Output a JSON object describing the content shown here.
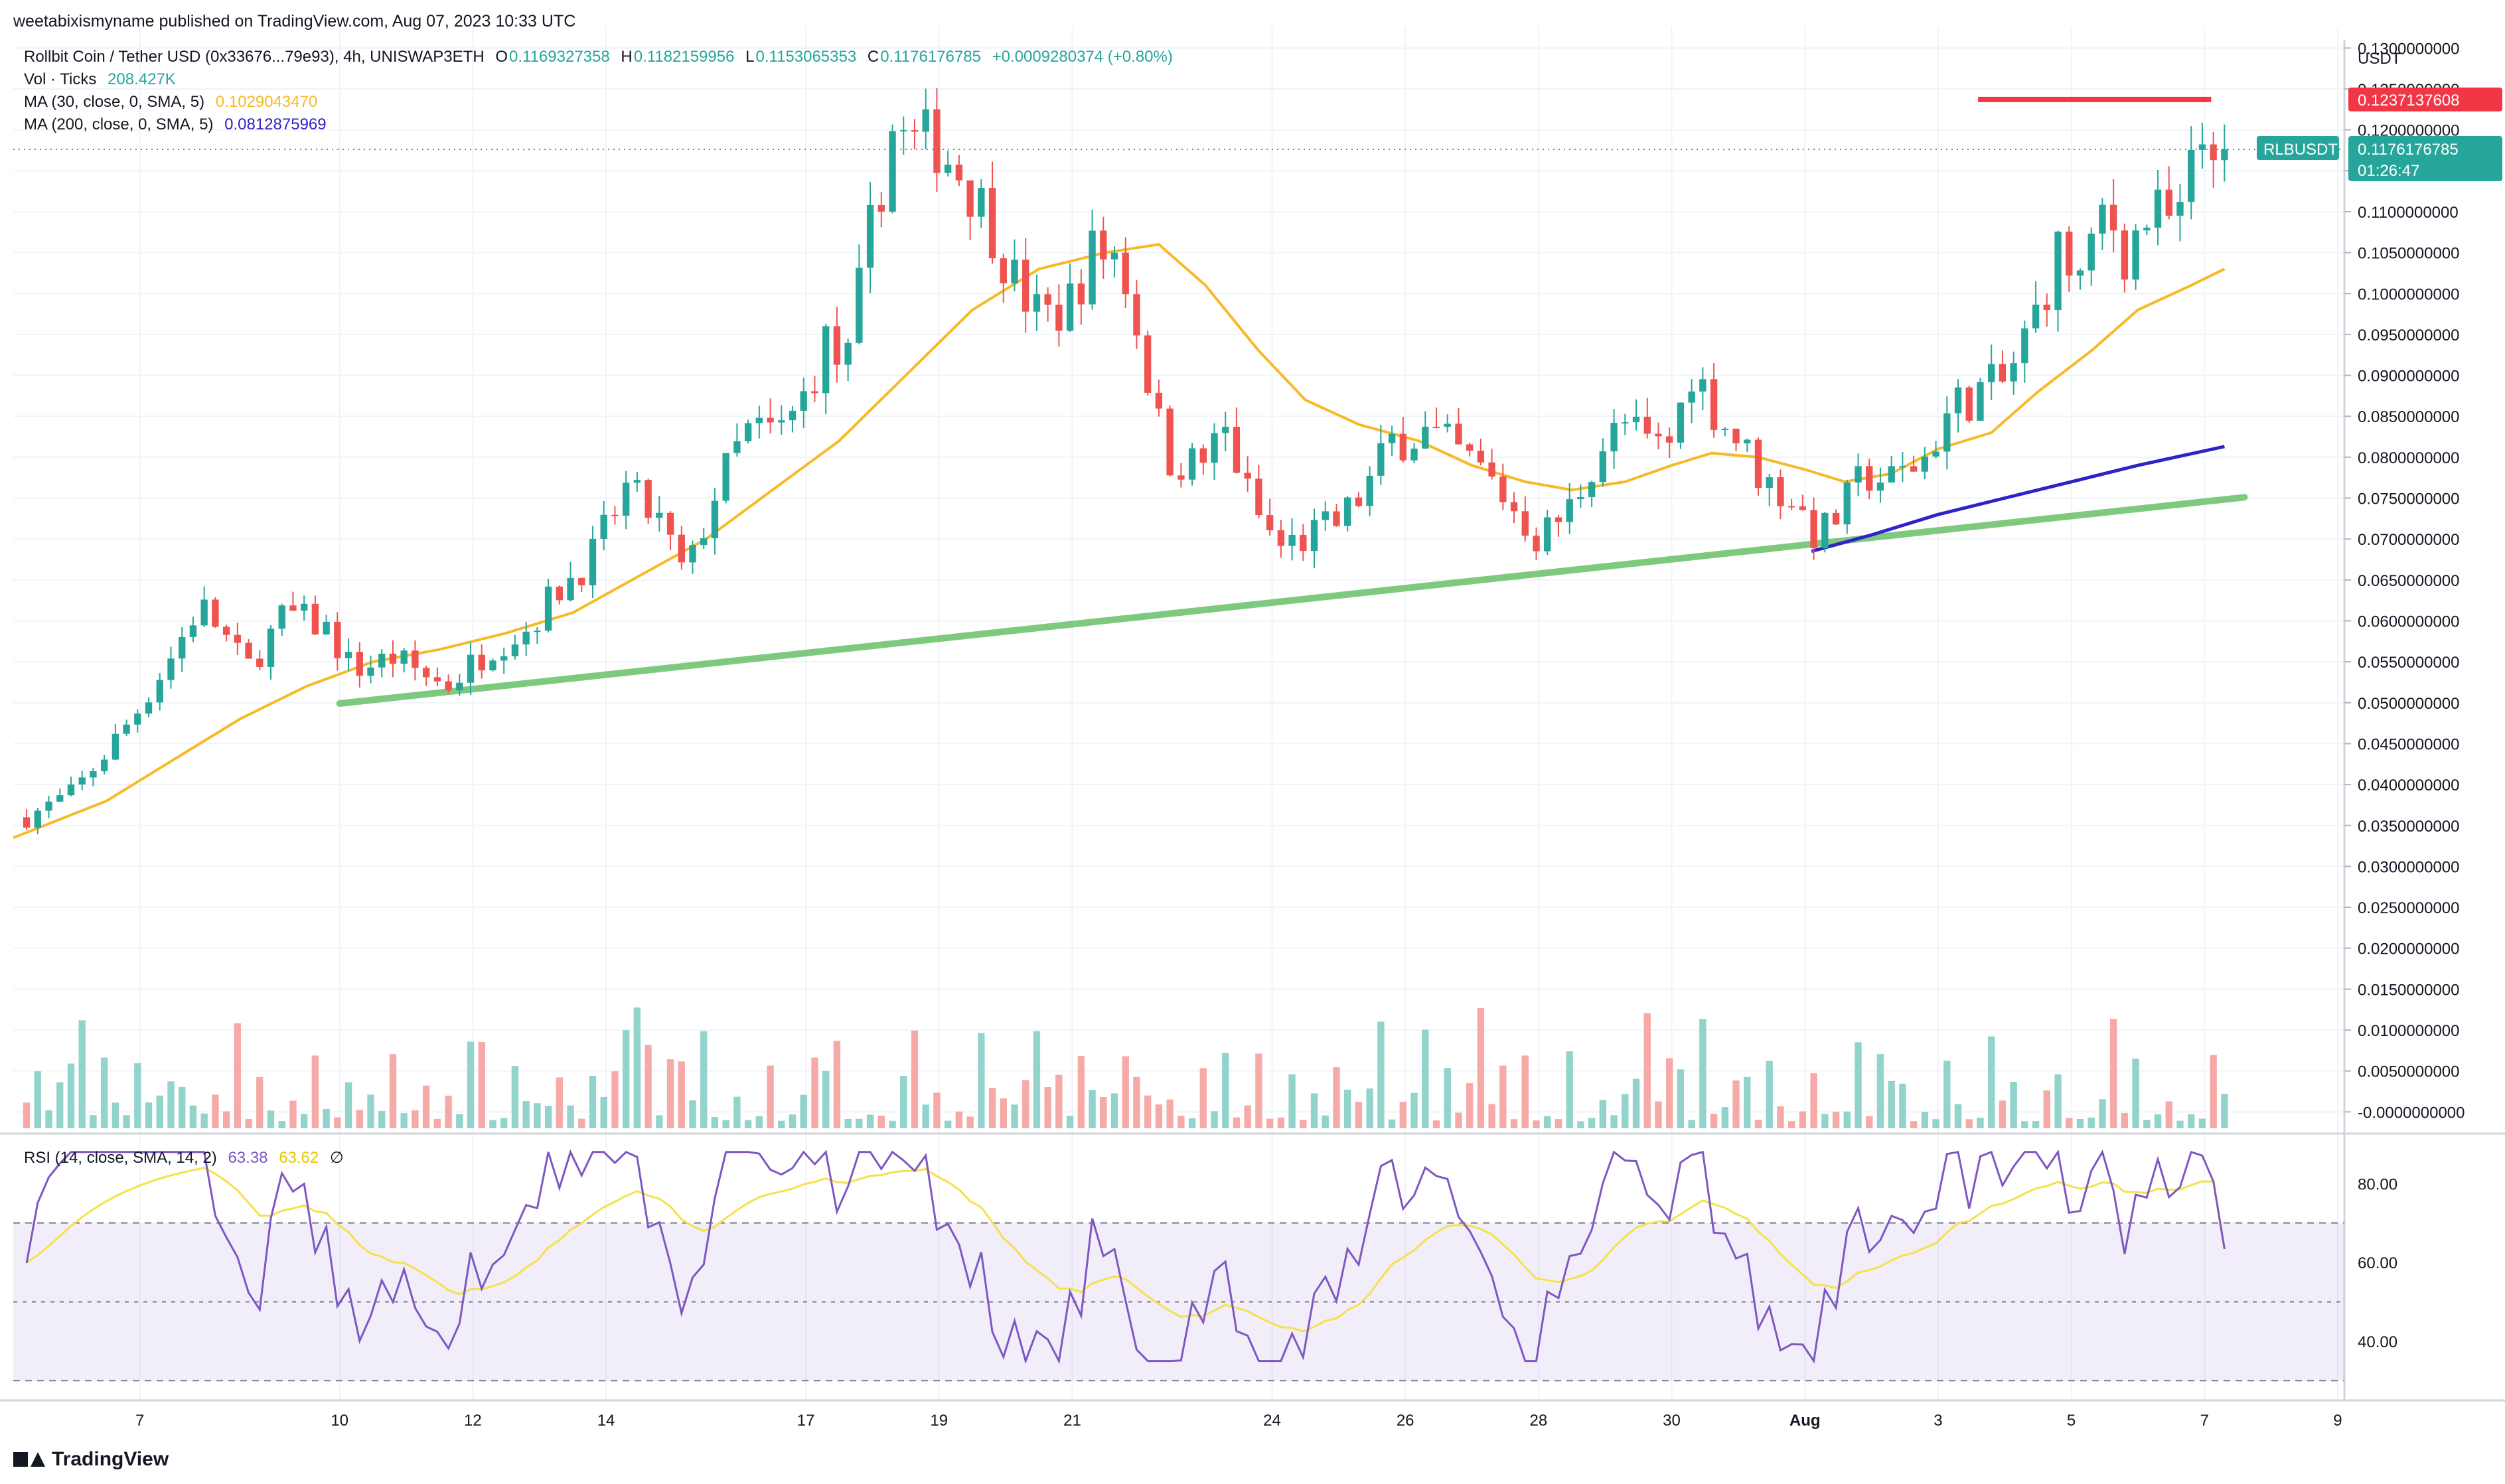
{
  "header": {
    "published": "weetabixismyname published on TradingView.com, Aug 07, 2023 10:33 UTC"
  },
  "legend": {
    "symbol": "Rollbit Coin / Tether USD (0x33676...79e93), 4h, UNISWAP3ETH",
    "o_label": "O",
    "o_value": "0.1169327358",
    "h_label": "H",
    "h_value": "0.1182159956",
    "l_label": "L",
    "l_value": "0.1153065353",
    "c_label": "C",
    "c_value": "0.1176176785",
    "change": "+0.0009280374 (+0.80%)",
    "vol_label": "Vol · Ticks",
    "vol_value": "208.427K",
    "ma30_label": "MA (30, close, 0, SMA, 5)",
    "ma30_value": "0.1029043470",
    "ma200_label": "MA (200, close, 0, SMA, 5)",
    "ma200_value": "0.0812875969",
    "rsi_label": "RSI (14, close, SMA, 14, 2)",
    "rsi_value": "63.38",
    "rsi_sma_value": "63.62",
    "rsi_extra": "∅"
  },
  "price_axis": {
    "currency": "USDT",
    "ticks": [
      "0.1300000000",
      "0.1250000000",
      "0.1200000000",
      "0.1150000000",
      "0.1100000000",
      "0.1050000000",
      "0.1000000000",
      "0.0950000000",
      "0.0900000000",
      "0.0850000000",
      "0.0800000000",
      "0.0750000000",
      "0.0700000000",
      "0.0650000000",
      "0.0600000000",
      "0.0550000000",
      "0.0500000000",
      "0.0450000000",
      "0.0400000000",
      "0.0350000000",
      "0.0300000000",
      "0.0250000000",
      "0.0200000000",
      "0.0150000000",
      "0.0100000000",
      "0.0050000000",
      "-0.0000000000"
    ],
    "resistance_label": "0.1237137608",
    "symbol_tag": "RLBUSDT",
    "last_price_label": "0.1176176785",
    "countdown": "01:26:47"
  },
  "rsi_axis": {
    "ticks": [
      "80.00",
      "60.00",
      "40.00"
    ]
  },
  "time_axis": {
    "ticks": [
      "7",
      "10",
      "12",
      "14",
      "17",
      "19",
      "21",
      "24",
      "26",
      "28",
      "30",
      "Aug",
      "3",
      "5",
      "7",
      "9"
    ]
  },
  "colors": {
    "up": "#26a69a",
    "down": "#ef5350",
    "ma30": "#f7b924",
    "ma200": "#2f22c9",
    "support": "#7fc97f",
    "resistance": "#f23645",
    "rsi": "#7e57c2",
    "rsi_sma": "#f5e14a",
    "vol_up": "#92d3cc",
    "vol_down": "#f5aaa8"
  },
  "chart_data": {
    "type": "candlestick",
    "timeframe": "4h",
    "x_tick_days": [
      7,
      10,
      12,
      14,
      17,
      19,
      21,
      24,
      26,
      28,
      30,
      32,
      34,
      36,
      38,
      40
    ],
    "x_tick_labels": [
      "7",
      "10",
      "12",
      "14",
      "17",
      "19",
      "21",
      "24",
      "26",
      "28",
      "30",
      "Aug",
      "3",
      "5",
      "7",
      "9"
    ],
    "day_range": [
      5.1,
      40.1
    ],
    "price_range": [
      -0.002,
      0.131
    ],
    "last_price": 0.1176176785,
    "resistance": {
      "price": 0.1237137608,
      "from_day": 34.6,
      "to_day": 38.1
    },
    "support_line": {
      "from": [
        10.0,
        0.0499
      ],
      "to": [
        38.6,
        0.0751
      ]
    },
    "price_waypoints": [
      [
        5.3,
        0.036
      ],
      [
        6.0,
        0.039
      ],
      [
        6.5,
        0.044
      ],
      [
        7.0,
        0.0495
      ],
      [
        7.5,
        0.056
      ],
      [
        7.9,
        0.062
      ],
      [
        8.2,
        0.059
      ],
      [
        8.6,
        0.054
      ],
      [
        9.2,
        0.061
      ],
      [
        9.8,
        0.059
      ],
      [
        10.2,
        0.054
      ],
      [
        10.8,
        0.0555
      ],
      [
        11.6,
        0.052
      ],
      [
        12.3,
        0.057
      ],
      [
        12.8,
        0.059
      ],
      [
        13.3,
        0.064
      ],
      [
        13.8,
        0.068
      ],
      [
        14.3,
        0.076
      ],
      [
        14.8,
        0.072
      ],
      [
        15.2,
        0.065
      ],
      [
        15.6,
        0.075
      ],
      [
        16.1,
        0.083
      ],
      [
        16.6,
        0.083
      ],
      [
        16.9,
        0.086
      ],
      [
        17.3,
        0.094
      ],
      [
        17.6,
        0.09
      ],
      [
        17.9,
        0.105
      ],
      [
        18.3,
        0.12
      ],
      [
        18.6,
        0.118
      ],
      [
        18.9,
        0.119
      ],
      [
        19.3,
        0.115
      ],
      [
        19.7,
        0.11
      ],
      [
        20.1,
        0.102
      ],
      [
        20.5,
        0.097
      ],
      [
        20.9,
        0.098
      ],
      [
        21.3,
        0.105
      ],
      [
        21.7,
        0.105
      ],
      [
        22.0,
        0.095
      ],
      [
        22.4,
        0.08
      ],
      [
        22.9,
        0.079
      ],
      [
        23.3,
        0.083
      ],
      [
        23.7,
        0.074
      ],
      [
        24.1,
        0.069
      ],
      [
        24.5,
        0.07
      ],
      [
        25.0,
        0.072
      ],
      [
        25.4,
        0.076
      ],
      [
        25.8,
        0.082
      ],
      [
        26.3,
        0.083
      ],
      [
        26.7,
        0.081
      ],
      [
        27.2,
        0.078
      ],
      [
        27.6,
        0.074
      ],
      [
        28.0,
        0.07
      ],
      [
        28.5,
        0.074
      ],
      [
        28.9,
        0.081
      ],
      [
        29.3,
        0.084
      ],
      [
        29.7,
        0.081
      ],
      [
        30.0,
        0.082
      ],
      [
        30.3,
        0.091
      ],
      [
        30.7,
        0.085
      ],
      [
        31.0,
        0.082
      ],
      [
        31.4,
        0.077
      ],
      [
        31.8,
        0.075
      ],
      [
        32.2,
        0.07
      ],
      [
        32.6,
        0.074
      ],
      [
        32.9,
        0.078
      ],
      [
        33.3,
        0.077
      ],
      [
        33.8,
        0.08
      ],
      [
        34.2,
        0.086
      ],
      [
        34.6,
        0.088
      ],
      [
        35.0,
        0.089
      ],
      [
        35.4,
        0.096
      ],
      [
        35.8,
        0.105
      ],
      [
        36.2,
        0.101
      ],
      [
        36.5,
        0.111
      ],
      [
        36.8,
        0.105
      ],
      [
        37.2,
        0.11
      ],
      [
        37.6,
        0.108
      ],
      [
        37.9,
        0.118
      ],
      [
        38.1,
        0.12
      ],
      [
        38.35,
        0.1176
      ]
    ],
    "ma30_waypoints": [
      [
        5.1,
        0.0335
      ],
      [
        6.5,
        0.038
      ],
      [
        7.5,
        0.043
      ],
      [
        8.5,
        0.048
      ],
      [
        9.5,
        0.052
      ],
      [
        10.5,
        0.055
      ],
      [
        11.5,
        0.0565
      ],
      [
        12.5,
        0.0585
      ],
      [
        13.5,
        0.061
      ],
      [
        14.5,
        0.0655
      ],
      [
        15.5,
        0.07
      ],
      [
        16.5,
        0.076
      ],
      [
        17.5,
        0.082
      ],
      [
        18.5,
        0.09
      ],
      [
        19.5,
        0.098
      ],
      [
        20.5,
        0.103
      ],
      [
        21.5,
        0.105
      ],
      [
        22.3,
        0.106
      ],
      [
        23.0,
        0.101
      ],
      [
        23.8,
        0.093
      ],
      [
        24.5,
        0.087
      ],
      [
        25.3,
        0.084
      ],
      [
        26.2,
        0.082
      ],
      [
        27.0,
        0.079
      ],
      [
        27.8,
        0.077
      ],
      [
        28.5,
        0.076
      ],
      [
        29.3,
        0.077
      ],
      [
        30.0,
        0.079
      ],
      [
        30.6,
        0.0805
      ],
      [
        31.3,
        0.08
      ],
      [
        32.0,
        0.0785
      ],
      [
        32.6,
        0.077
      ],
      [
        33.3,
        0.078
      ],
      [
        34.0,
        0.081
      ],
      [
        34.8,
        0.083
      ],
      [
        35.5,
        0.088
      ],
      [
        36.3,
        0.093
      ],
      [
        37.0,
        0.098
      ],
      [
        37.8,
        0.101
      ],
      [
        38.3,
        0.103
      ]
    ],
    "ma200_waypoints": [
      [
        32.1,
        0.0685
      ],
      [
        33.0,
        0.0705
      ],
      [
        34.0,
        0.073
      ],
      [
        35.0,
        0.075
      ],
      [
        36.0,
        0.077
      ],
      [
        37.0,
        0.079
      ],
      [
        38.3,
        0.0813
      ]
    ],
    "volume_range": [
      0,
      0.8
    ],
    "rsi": {
      "last": 63.38,
      "sma_last": 63.62,
      "upper": 70,
      "middle": 50,
      "lower": 30,
      "range": [
        25,
        92
      ]
    }
  }
}
